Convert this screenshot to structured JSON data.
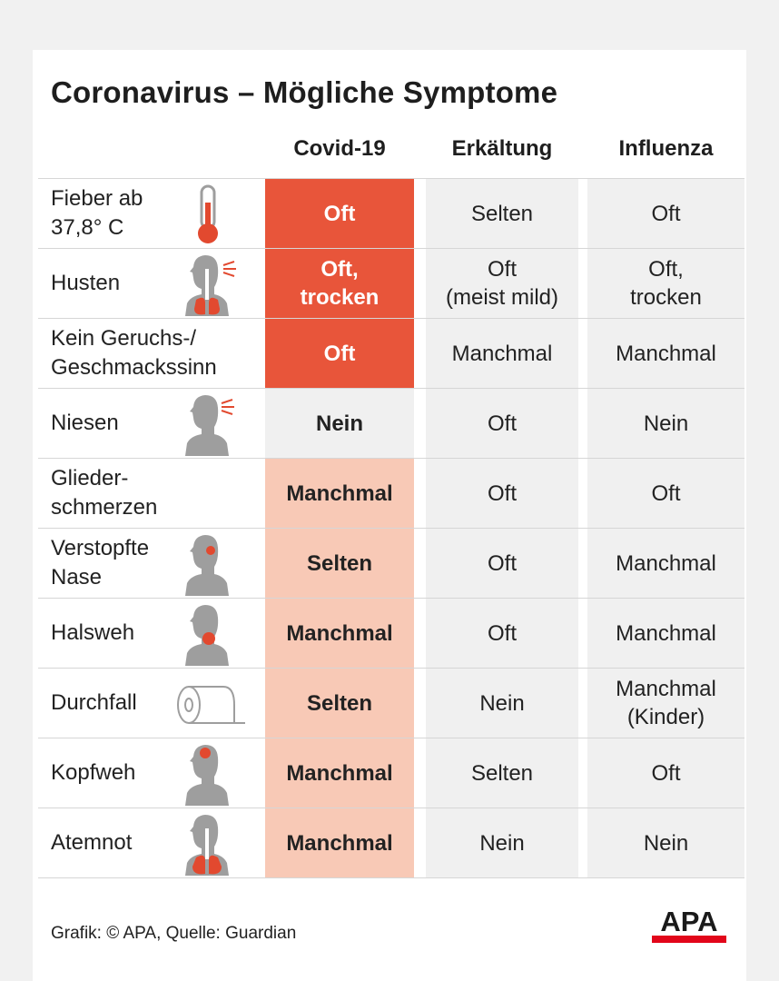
{
  "title": "Coronavirus – Mögliche Symptome",
  "columns": [
    "Covid-19",
    "Erkältung",
    "Influenza"
  ],
  "colors": {
    "covid_oft": "#e8553a",
    "covid_mittel": "#f8c9b6",
    "covid_nein": "#f0f0f0",
    "icon_gray": "#9e9e9e",
    "icon_red": "#e2492f"
  },
  "rows": [
    {
      "symptom": "Fieber ab\n37,8° C",
      "icon": "thermometer-icon",
      "covid": "Oft",
      "level": "oft",
      "erkaeltung": "Selten",
      "influenza": "Oft"
    },
    {
      "symptom": "Husten",
      "icon": "cough-lungs-icon",
      "covid": "Oft,\ntrocken",
      "level": "oft",
      "erkaeltung": "Oft\n(meist mild)",
      "influenza": "Oft,\ntrocken"
    },
    {
      "symptom": "Kein Geruchs-/\nGeschmackssinn",
      "icon": "",
      "covid": "Oft",
      "level": "oft",
      "erkaeltung": "Manchmal",
      "influenza": "Manchmal"
    },
    {
      "symptom": "Niesen",
      "icon": "sneeze-head-icon",
      "covid": "Nein",
      "level": "nein",
      "erkaeltung": "Oft",
      "influenza": "Nein"
    },
    {
      "symptom": "Glieder-\nschmerzen",
      "icon": "",
      "covid": "Manchmal",
      "level": "mittel",
      "erkaeltung": "Oft",
      "influenza": "Oft"
    },
    {
      "symptom": "Verstopfte\nNase",
      "icon": "nose-head-icon",
      "covid": "Selten",
      "level": "mittel",
      "erkaeltung": "Oft",
      "influenza": "Manchmal"
    },
    {
      "symptom": "Halsweh",
      "icon": "throat-head-icon",
      "covid": "Manchmal",
      "level": "mittel",
      "erkaeltung": "Oft",
      "influenza": "Manchmal"
    },
    {
      "symptom": "Durchfall",
      "icon": "toilet-paper-icon",
      "covid": "Selten",
      "level": "mittel",
      "erkaeltung": "Nein",
      "influenza": "Manchmal\n(Kinder)"
    },
    {
      "symptom": "Kopfweh",
      "icon": "headache-head-icon",
      "covid": "Manchmal",
      "level": "mittel",
      "erkaeltung": "Selten",
      "influenza": "Oft"
    },
    {
      "symptom": "Atemnot",
      "icon": "lungs-icon",
      "covid": "Manchmal",
      "level": "mittel",
      "erkaeltung": "Nein",
      "influenza": "Nein"
    }
  ],
  "footer": "Grafik: © APA, Quelle: Guardian",
  "logo_text": "APA"
}
